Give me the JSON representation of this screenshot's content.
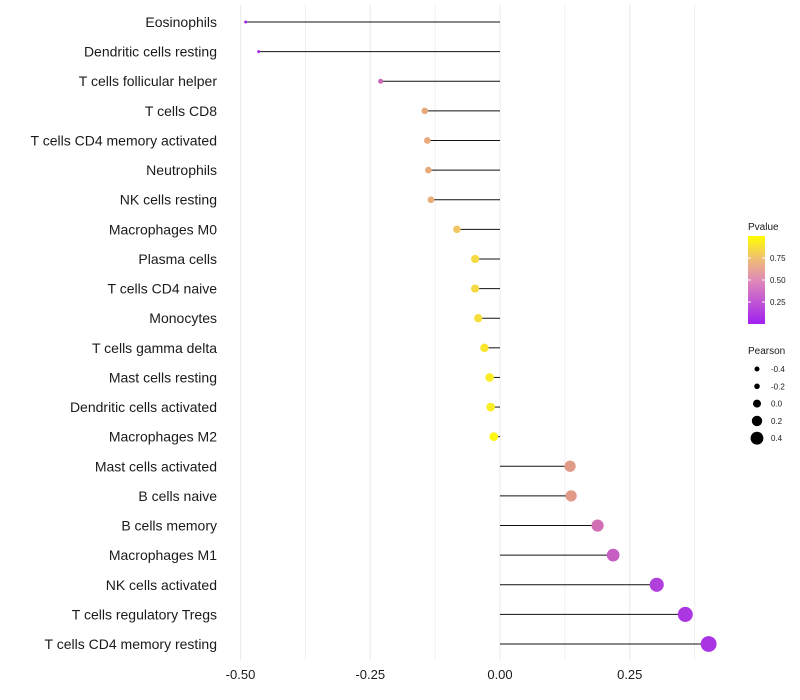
{
  "chart_data": {
    "type": "lollipop",
    "title": "",
    "xlabel": "",
    "ylabel": "",
    "xlim": [
      -0.52,
      0.42
    ],
    "x_ticks": [
      -0.5,
      -0.25,
      0.0,
      0.25
    ],
    "x_tick_labels": [
      "-0.50",
      "-0.25",
      "0.00",
      "0.25"
    ],
    "grid": "vertical",
    "categories": [
      "Eosinophils",
      "Dendritic cells resting",
      "T cells follicular helper",
      "T cells CD8",
      "T cells CD4 memory activated",
      "Neutrophils",
      "NK cells resting",
      "Macrophages M0",
      "Plasma cells",
      "T cells CD4 naive",
      "Monocytes",
      "T cells gamma delta",
      "Mast cells resting",
      "Dendritic cells activated",
      "Macrophages M2",
      "Mast cells activated",
      "B cells naive",
      "B cells memory",
      "Macrophages M1",
      "NK cells activated",
      "T cells regulatory  Tregs",
      "T cells CD4 memory resting"
    ],
    "pearson": [
      -0.49,
      -0.465,
      -0.23,
      -0.145,
      -0.14,
      -0.138,
      -0.133,
      -0.083,
      -0.048,
      -0.048,
      -0.042,
      -0.03,
      -0.02,
      -0.018,
      -0.012,
      0.135,
      0.137,
      0.188,
      0.218,
      0.302,
      0.357,
      0.402
    ],
    "pvalue": [
      0.02,
      0.05,
      0.42,
      0.65,
      0.66,
      0.66,
      0.67,
      0.78,
      0.85,
      0.85,
      0.87,
      0.9,
      0.92,
      0.93,
      0.96,
      0.6,
      0.6,
      0.45,
      0.38,
      0.25,
      0.18,
      0.15
    ],
    "legend": {
      "color_title": "Pvalue",
      "color_ticks": [
        "0.25",
        "0.50",
        "0.75"
      ],
      "color_range": [
        "#a020f0",
        "#ffff00"
      ],
      "size_title": "Pearson",
      "size_ticks": [
        "-0.4",
        "-0.2",
        "0.0",
        "0.2",
        "0.4"
      ],
      "placement": "right"
    }
  }
}
